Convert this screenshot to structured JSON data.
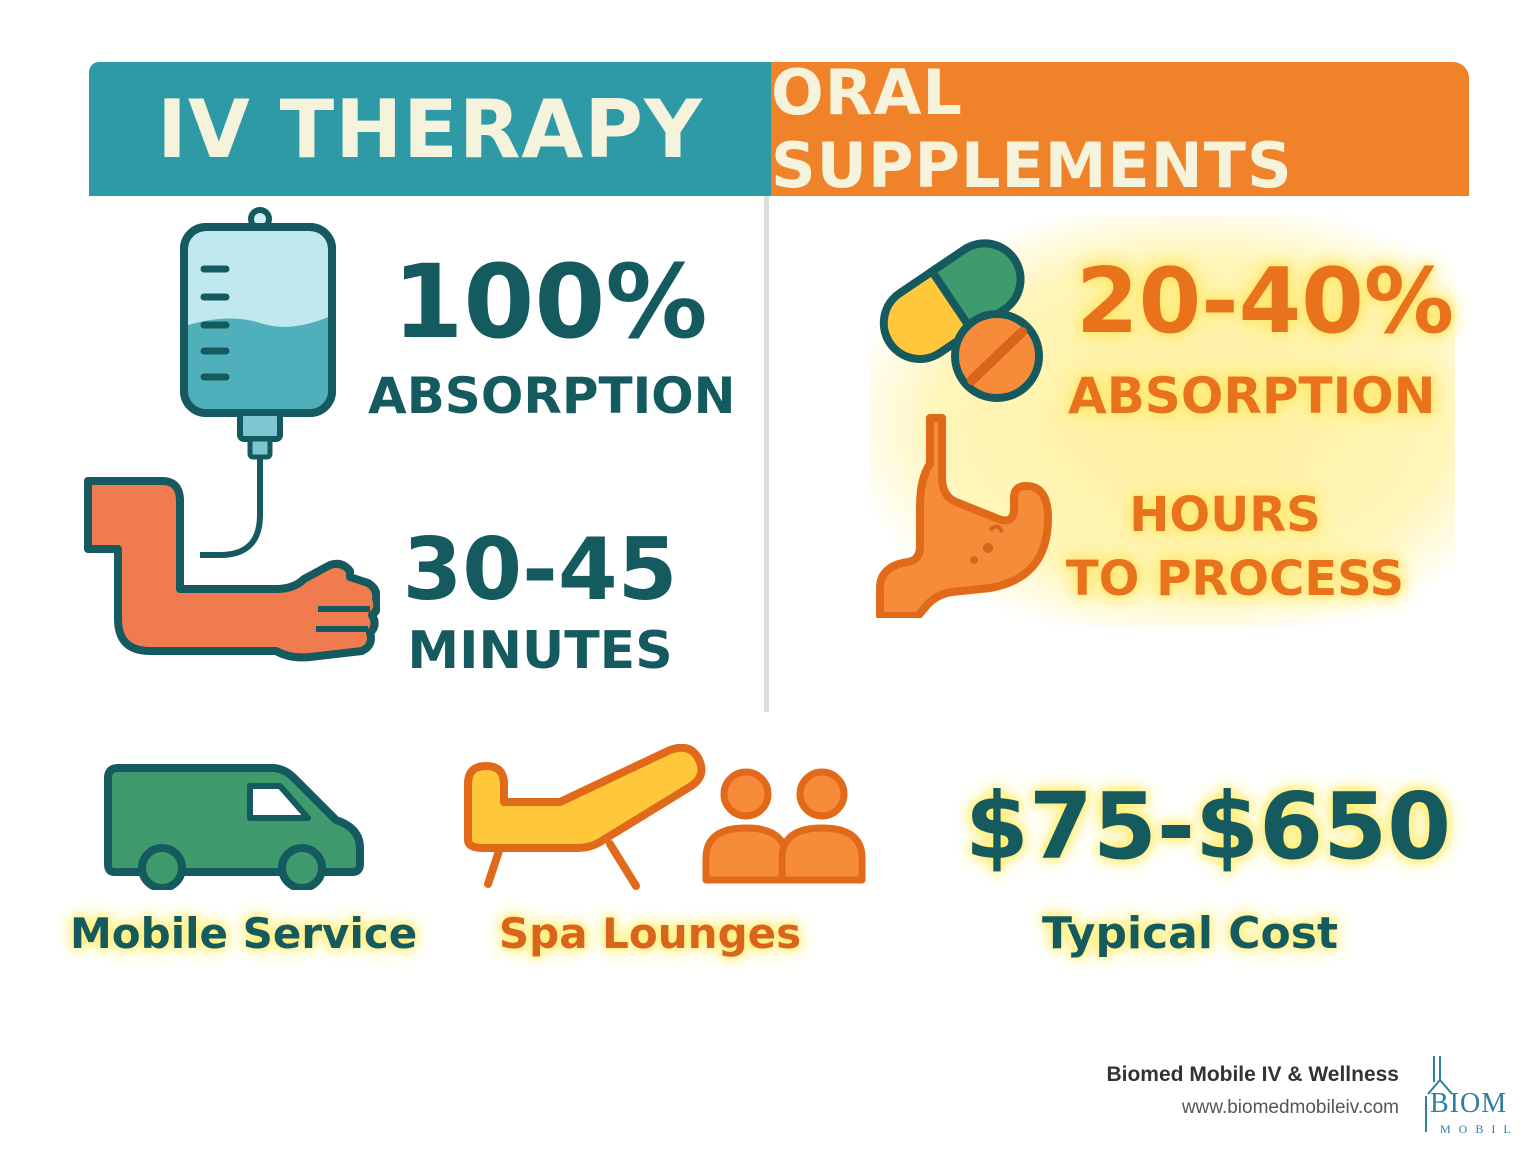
{
  "iv_column": {
    "header": "IV THERAPY",
    "absorption_value": "100%",
    "absorption_label": "ABSORPTION",
    "duration_value": "30-45",
    "duration_label": "MINUTES"
  },
  "oral_column": {
    "header": "ORAL SUPPLEMENTS",
    "absorption_value": "20-40%",
    "absorption_label": "ABSORPTION",
    "process_line1": "HOURS",
    "process_line2": "TO PROCESS"
  },
  "bottom": {
    "mobile_label": "Mobile Service",
    "spa_label": "Spa Lounges",
    "cost_value": "$75-$650",
    "cost_label": "Typical Cost"
  },
  "footer": {
    "company": "Biomed Mobile IV & Wellness",
    "url": "www.biomedmobileiv.com",
    "logo_text_top": "BIOM",
    "logo_text_bottom": "MOBIL"
  },
  "colors": {
    "teal": "#2e9aa6",
    "dark_teal": "#145a5e",
    "orange": "#f0832a",
    "yellow": "#ffd43b",
    "green": "#3f9a6e"
  },
  "icons": [
    "iv-bag-icon",
    "arm-icon",
    "capsule-icon",
    "tablet-icon",
    "stomach-icon",
    "van-icon",
    "lounge-chair-icon",
    "people-icon",
    "logo-icon"
  ]
}
